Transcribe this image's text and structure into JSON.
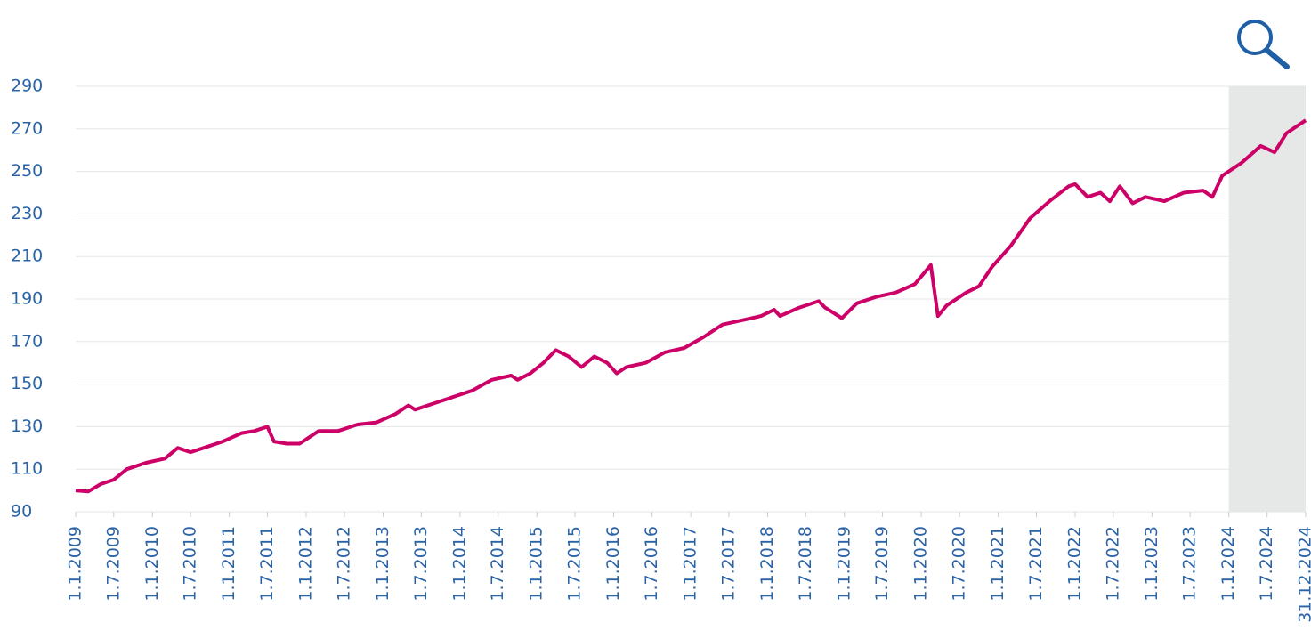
{
  "chart_data": {
    "type": "line",
    "x": [
      "2009-01-01",
      "2009-03-01",
      "2009-05-01",
      "2009-07-01",
      "2009-09-01",
      "2009-12-01",
      "2010-03-01",
      "2010-05-01",
      "2010-07-01",
      "2010-09-01",
      "2010-12-01",
      "2011-03-01",
      "2011-05-01",
      "2011-07-01",
      "2011-08-01",
      "2011-10-01",
      "2011-12-01",
      "2012-03-01",
      "2012-06-01",
      "2012-09-01",
      "2012-12-01",
      "2013-03-01",
      "2013-05-01",
      "2013-06-01",
      "2013-09-01",
      "2013-12-01",
      "2014-03-01",
      "2014-06-01",
      "2014-09-01",
      "2014-10-01",
      "2014-12-01",
      "2015-02-01",
      "2015-04-01",
      "2015-06-01",
      "2015-08-01",
      "2015-10-01",
      "2015-12-01",
      "2016-01-15",
      "2016-03-01",
      "2016-06-01",
      "2016-09-01",
      "2016-12-01",
      "2017-03-01",
      "2017-06-01",
      "2017-09-01",
      "2017-12-01",
      "2018-02-01",
      "2018-03-01",
      "2018-06-01",
      "2018-09-01",
      "2018-10-01",
      "2018-12-20",
      "2019-03-01",
      "2019-06-01",
      "2019-09-01",
      "2019-12-01",
      "2020-02-15",
      "2020-03-20",
      "2020-05-01",
      "2020-08-01",
      "2020-10-01",
      "2020-12-01",
      "2021-03-01",
      "2021-06-01",
      "2021-09-01",
      "2021-12-01",
      "2022-01-01",
      "2022-03-01",
      "2022-05-01",
      "2022-06-15",
      "2022-08-01",
      "2022-10-01",
      "2022-12-01",
      "2023-03-01",
      "2023-06-01",
      "2023-09-01",
      "2023-10-15",
      "2023-12-01",
      "2024-03-01",
      "2024-06-01",
      "2024-08-05",
      "2024-10-01",
      "2024-12-31"
    ],
    "series": [
      {
        "color": "#cc0066",
        "values": [
          100,
          99.5,
          103,
          105,
          110,
          113,
          115,
          120,
          118,
          120,
          123,
          127,
          128,
          130,
          123,
          122,
          122,
          128,
          128,
          131,
          132,
          136,
          140,
          138,
          141,
          144,
          147,
          152,
          154,
          152,
          155,
          160,
          166,
          163,
          158,
          163,
          160,
          155,
          158,
          160,
          165,
          167,
          172,
          178,
          180,
          182,
          185,
          182,
          186,
          189,
          186,
          181,
          188,
          191,
          193,
          197,
          206,
          182,
          187,
          193,
          196,
          205,
          215,
          228,
          236,
          243,
          244,
          238,
          240,
          236,
          243,
          235,
          238,
          236,
          240,
          241,
          238,
          248,
          254,
          262,
          259,
          268,
          274
        ]
      }
    ],
    "xlim": [
      "2009-01-01",
      "2024-12-31"
    ],
    "xticks": [
      {
        "value": "2009-01-01",
        "label": "1.1.2009"
      },
      {
        "value": "2009-07-01",
        "label": "1.7.2009"
      },
      {
        "value": "2010-01-01",
        "label": "1.1.2010"
      },
      {
        "value": "2010-07-01",
        "label": "1.7.2010"
      },
      {
        "value": "2011-01-01",
        "label": "1.1.2011"
      },
      {
        "value": "2011-07-01",
        "label": "1.7.2011"
      },
      {
        "value": "2012-01-01",
        "label": "1.1.2012"
      },
      {
        "value": "2012-07-01",
        "label": "1.7.2012"
      },
      {
        "value": "2013-01-01",
        "label": "1.1.2013"
      },
      {
        "value": "2013-07-01",
        "label": "1.7.2013"
      },
      {
        "value": "2014-01-01",
        "label": "1.1.2014"
      },
      {
        "value": "2014-07-01",
        "label": "1.7.2014"
      },
      {
        "value": "2015-01-01",
        "label": "1.1.2015"
      },
      {
        "value": "2015-07-01",
        "label": "1.7.2015"
      },
      {
        "value": "2016-01-01",
        "label": "1.1.2016"
      },
      {
        "value": "2016-07-01",
        "label": "1.7.2016"
      },
      {
        "value": "2017-01-01",
        "label": "1.1.2017"
      },
      {
        "value": "2017-07-01",
        "label": "1.7.2017"
      },
      {
        "value": "2018-01-01",
        "label": "1.1.2018"
      },
      {
        "value": "2018-07-01",
        "label": "1.7.2018"
      },
      {
        "value": "2019-01-01",
        "label": "1.1.2019"
      },
      {
        "value": "2019-07-01",
        "label": "1.7.2019"
      },
      {
        "value": "2020-01-01",
        "label": "1.1.2020"
      },
      {
        "value": "2020-07-01",
        "label": "1.7.2020"
      },
      {
        "value": "2021-01-01",
        "label": "1.1.2021"
      },
      {
        "value": "2021-07-01",
        "label": "1.7.2021"
      },
      {
        "value": "2022-01-01",
        "label": "1.1.2022"
      },
      {
        "value": "2022-07-01",
        "label": "1.7.2022"
      },
      {
        "value": "2023-01-01",
        "label": "1.1.2023"
      },
      {
        "value": "2023-07-01",
        "label": "1.7.2023"
      },
      {
        "value": "2024-01-01",
        "label": "1.1.2024"
      },
      {
        "value": "2024-07-01",
        "label": "1.7.2024"
      },
      {
        "value": "2024-12-31",
        "label": "31.12.2024"
      }
    ],
    "ylim": [
      90,
      290
    ],
    "yticks": [
      90,
      110,
      130,
      150,
      170,
      190,
      210,
      230,
      250,
      270,
      290
    ],
    "grid": true,
    "highlight": {
      "from": "2024-01-01",
      "to": "2024-12-31",
      "color": "#e6e8e8"
    }
  }
}
